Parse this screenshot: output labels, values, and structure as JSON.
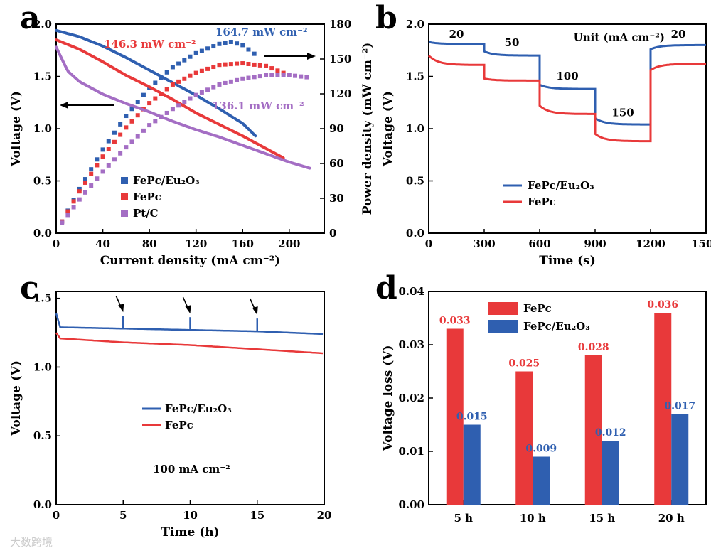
{
  "watermark": "大数跨境",
  "chart_data": [
    {
      "panel": "a",
      "type": "scatter",
      "xlabel": "Current density (mA cm⁻²)",
      "ylabel": "Voltage (V)",
      "y2label": "Power density (mW cm⁻²)",
      "xlim": [
        0,
        230
      ],
      "ylim": [
        0,
        2.0
      ],
      "y2lim": [
        0,
        180
      ],
      "xticks": [
        "0",
        "40",
        "80",
        "120",
        "160",
        "200"
      ],
      "yticks": [
        "0.0",
        "0.5",
        "1.0",
        "1.5",
        "2.0"
      ],
      "y2ticks": [
        "0",
        "30",
        "60",
        "90",
        "120",
        "150",
        "180"
      ],
      "legend": [
        "FePc/Eu₂O₃",
        "FePc",
        "Pt/C"
      ],
      "annotations": [
        "164.7 mW cm⁻²",
        "146.3 mW cm⁻²",
        "136.1 mW cm⁻²"
      ],
      "colors": [
        "#2f5fb0",
        "#e8393a",
        "#a46ec4"
      ],
      "series": [
        {
          "name": "FePc/Eu₂O₃",
          "x_end": 172,
          "voltage": [
            [
              0,
              1.94
            ],
            [
              20,
              1.88
            ],
            [
              40,
              1.79
            ],
            [
              60,
              1.68
            ],
            [
              80,
              1.56
            ],
            [
              100,
              1.44
            ],
            [
              120,
              1.32
            ],
            [
              140,
              1.19
            ],
            [
              160,
              1.05
            ],
            [
              172,
              0.92
            ]
          ],
          "power": [
            [
              5,
              10
            ],
            [
              20,
              38
            ],
            [
              40,
              72
            ],
            [
              60,
              101
            ],
            [
              80,
              125
            ],
            [
              100,
              143
            ],
            [
              120,
              155
            ],
            [
              140,
              163
            ],
            [
              150,
              164.7
            ],
            [
              160,
              162
            ],
            [
              172,
              153
            ]
          ]
        },
        {
          "name": "FePc",
          "x_end": 195,
          "voltage": [
            [
              0,
              1.85
            ],
            [
              20,
              1.76
            ],
            [
              40,
              1.64
            ],
            [
              60,
              1.51
            ],
            [
              80,
              1.4
            ],
            [
              100,
              1.28
            ],
            [
              120,
              1.15
            ],
            [
              140,
              1.04
            ],
            [
              160,
              0.93
            ],
            [
              180,
              0.81
            ],
            [
              195,
              0.72
            ]
          ],
          "power": [
            [
              5,
              10
            ],
            [
              20,
              36
            ],
            [
              40,
              66
            ],
            [
              60,
              91
            ],
            [
              80,
              112
            ],
            [
              100,
              128
            ],
            [
              120,
              138
            ],
            [
              140,
              145
            ],
            [
              160,
              146.3
            ],
            [
              180,
              144
            ],
            [
              195,
              138
            ]
          ]
        },
        {
          "name": "Pt/C",
          "x_end": 218,
          "voltage": [
            [
              0,
              1.78
            ],
            [
              10,
              1.55
            ],
            [
              20,
              1.45
            ],
            [
              40,
              1.33
            ],
            [
              60,
              1.24
            ],
            [
              80,
              1.16
            ],
            [
              100,
              1.07
            ],
            [
              120,
              0.99
            ],
            [
              140,
              0.92
            ],
            [
              160,
              0.84
            ],
            [
              180,
              0.76
            ],
            [
              200,
              0.68
            ],
            [
              218,
              0.62
            ]
          ],
          "power": [
            [
              5,
              9
            ],
            [
              20,
              29
            ],
            [
              40,
              53
            ],
            [
              60,
              74
            ],
            [
              80,
              93
            ],
            [
              100,
              107
            ],
            [
              120,
              119
            ],
            [
              140,
              128
            ],
            [
              160,
              133
            ],
            [
              180,
              136
            ],
            [
              200,
              136.1
            ],
            [
              218,
              134
            ]
          ]
        }
      ]
    },
    {
      "panel": "b",
      "type": "line",
      "xlabel": "Time (s)",
      "ylabel": "Voltage (V)",
      "xlim": [
        0,
        1500
      ],
      "ylim": [
        0.0,
        2.0
      ],
      "xticks": [
        "0",
        "300",
        "600",
        "900",
        "1200",
        "1500"
      ],
      "yticks": [
        "0.0",
        "0.5",
        "1.0",
        "1.5",
        "2.0"
      ],
      "legend": [
        "FePc/Eu₂O₃",
        "FePc"
      ],
      "step_labels": [
        "20",
        "50",
        "100",
        "150",
        "20"
      ],
      "unit_label": "Unit (mA cm⁻²)",
      "series": [
        {
          "name": "FePc/Eu₂O₃",
          "steps": [
            [
              0,
              300,
              1.83,
              1.81
            ],
            [
              300,
              600,
              1.74,
              1.7
            ],
            [
              600,
              900,
              1.42,
              1.38
            ],
            [
              900,
              1200,
              1.1,
              1.04
            ],
            [
              1200,
              1500,
              1.76,
              1.8
            ]
          ]
        },
        {
          "name": "FePc",
          "steps": [
            [
              0,
              300,
              1.7,
              1.61
            ],
            [
              300,
              600,
              1.48,
              1.46
            ],
            [
              600,
              900,
              1.22,
              1.14
            ],
            [
              900,
              1200,
              0.95,
              0.88
            ],
            [
              1200,
              1500,
              1.56,
              1.62
            ]
          ]
        }
      ]
    },
    {
      "panel": "c",
      "type": "line",
      "xlabel": "Time (h)",
      "ylabel": "Voltage (V)",
      "xlim": [
        0,
        20
      ],
      "ylim": [
        0.0,
        1.5
      ],
      "xticks": [
        "0",
        "5",
        "10",
        "15",
        "20"
      ],
      "yticks": [
        "0.0",
        "0.5",
        "1.0",
        "1.5"
      ],
      "legend": [
        "FePc/Eu₂O₃",
        "FePc"
      ],
      "annotation": "100 mA cm⁻²",
      "series": [
        {
          "name": "FePc/Eu₂O₃",
          "x": [
            0,
            5,
            10,
            15,
            20
          ],
          "y": [
            1.29,
            1.28,
            1.27,
            1.26,
            1.24
          ]
        },
        {
          "name": "FePc",
          "x": [
            0,
            5,
            10,
            15,
            20
          ],
          "y": [
            1.21,
            1.18,
            1.16,
            1.13,
            1.1
          ]
        }
      ]
    },
    {
      "panel": "d",
      "type": "bar",
      "xlabel": "",
      "ylabel": "Voltage loss (V)",
      "ylim": [
        0.0,
        0.04
      ],
      "yticks": [
        "0.00",
        "0.01",
        "0.02",
        "0.03",
        "0.04"
      ],
      "categories": [
        "5 h",
        "10 h",
        "15 h",
        "20 h"
      ],
      "series": [
        {
          "name": "FePc",
          "values": [
            0.033,
            0.025,
            0.028,
            0.036
          ],
          "labels": [
            "0.033",
            "0.025",
            "0.028",
            "0.036"
          ]
        },
        {
          "name": "FePc/Eu₂O₃",
          "values": [
            0.015,
            0.009,
            0.012,
            0.017
          ],
          "labels": [
            "0.015",
            "0.009",
            "0.012",
            "0.017"
          ]
        }
      ]
    }
  ]
}
